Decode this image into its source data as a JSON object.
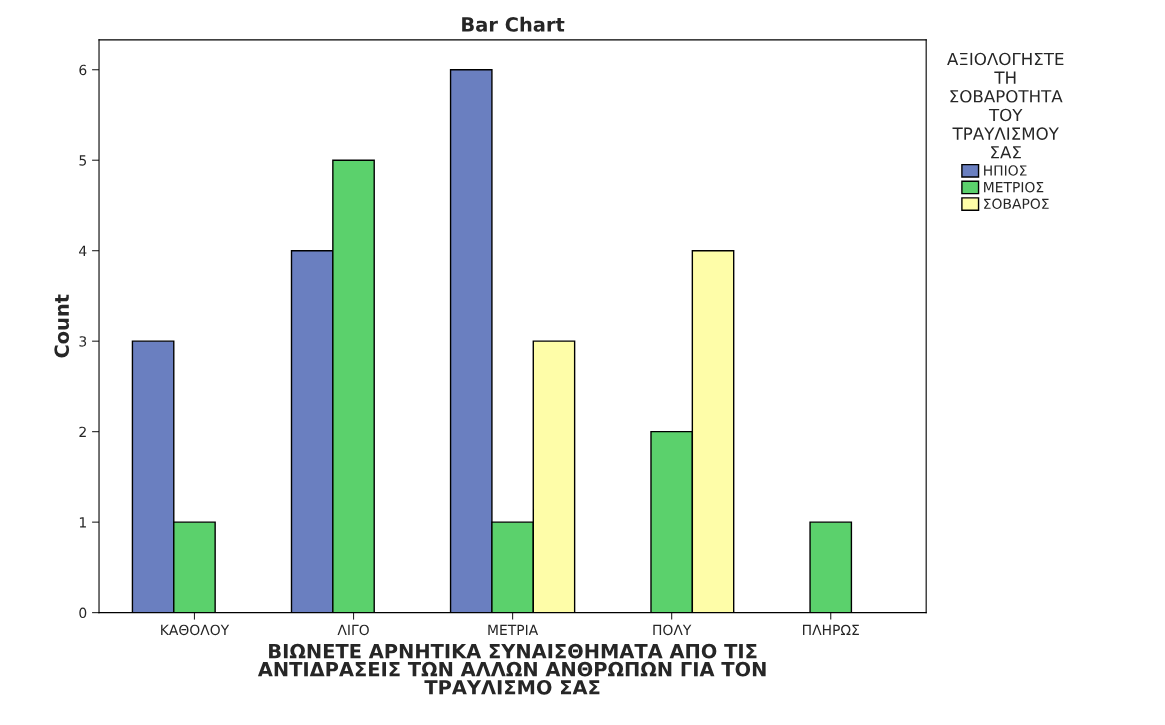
{
  "chart_data": {
    "type": "bar",
    "title": "Bar Chart",
    "xlabel": "ΒΙΩΝΕΤΕ ΑΡΝΗΤΙΚΑ ΣΥΝΑΙΣΘΗΜΑΤΑ ΑΠΟ ΤΙΣ\nΑΝΤΙΔΡΑΣΕΙΣ ΤΩΝ ΑΛΛΩΝ ΑΝΘΡΩΠΩΝ ΓΙΑ ΤΟΝ\nΤΡΑΥΛΙΣΜΟ ΣΑΣ",
    "ylabel": "Count",
    "legend_title": "ΑΞΙΟΛΟΓΗΣΤΕ\nΤΗ\nΣΟΒΑΡΟΤΗΤΑ\nΤΟΥ\nΤΡΑΥΛΙΣΜΟΥ\nΣΑΣ",
    "categories": [
      "ΚΑΘΟΛΟΥ",
      "ΛΙΓΟ",
      "ΜΕΤΡΙΑ",
      "ΠΟΛΥ",
      "ΠΛΗΡΩΣ"
    ],
    "series": [
      {
        "name": "ΗΠΙΟΣ",
        "color": "#6a7fc0",
        "values": [
          3,
          4,
          6,
          null,
          null
        ]
      },
      {
        "name": "ΜΕΤΡΙΟΣ",
        "color": "#5bd16c",
        "values": [
          1,
          5,
          1,
          2,
          1
        ]
      },
      {
        "name": "ΣΟΒΑΡΟΣ",
        "color": "#fefda8",
        "values": [
          null,
          null,
          3,
          4,
          null
        ]
      }
    ],
    "ylim": [
      0,
      6.33
    ],
    "yticks": [
      0,
      1,
      2,
      3,
      4,
      5,
      6
    ],
    "grid": false,
    "legend": "top right"
  }
}
